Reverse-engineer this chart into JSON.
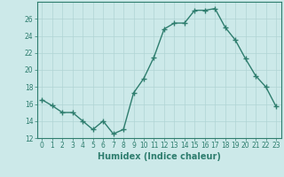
{
  "x": [
    0,
    1,
    2,
    3,
    4,
    5,
    6,
    7,
    8,
    9,
    10,
    11,
    12,
    13,
    14,
    15,
    16,
    17,
    18,
    19,
    20,
    21,
    22,
    23
  ],
  "y": [
    16.5,
    15.8,
    15.0,
    15.0,
    14.0,
    13.0,
    14.0,
    12.5,
    13.0,
    17.3,
    19.0,
    21.5,
    24.8,
    25.5,
    25.5,
    27.0,
    27.0,
    27.2,
    25.0,
    23.5,
    21.3,
    19.3,
    18.0,
    15.7
  ],
  "line_color": "#2e7d6e",
  "marker": "+",
  "marker_size": 4,
  "linewidth": 1.0,
  "background_color": "#cce9e9",
  "grid_color": "#b0d4d4",
  "xlabel": "Humidex (Indice chaleur)",
  "xlabel_fontsize": 7,
  "tick_fontsize": 5.5,
  "ylim": [
    12,
    28
  ],
  "xlim": [
    -0.5,
    23.5
  ],
  "yticks": [
    12,
    14,
    16,
    18,
    20,
    22,
    24,
    26
  ],
  "xticks": [
    0,
    1,
    2,
    3,
    4,
    5,
    6,
    7,
    8,
    9,
    10,
    11,
    12,
    13,
    14,
    15,
    16,
    17,
    18,
    19,
    20,
    21,
    22,
    23
  ],
  "xtick_labels": [
    "0",
    "1",
    "2",
    "3",
    "4",
    "5",
    "6",
    "7",
    "8",
    "9",
    "10",
    "11",
    "12",
    "13",
    "14",
    "15",
    "16",
    "17",
    "18",
    "19",
    "20",
    "21",
    "22",
    "23"
  ]
}
